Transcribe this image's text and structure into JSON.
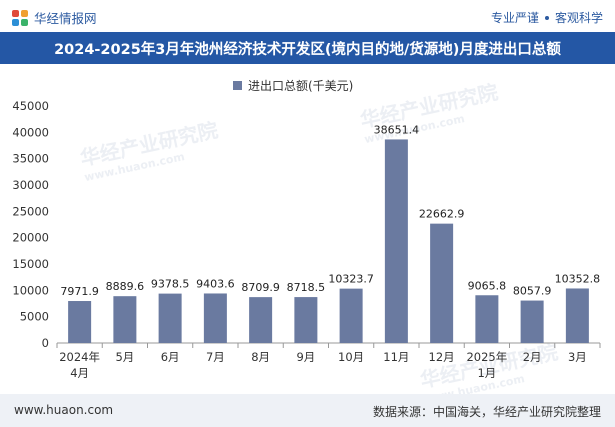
{
  "header": {
    "brand": "华经情报网",
    "tag1": "专业严谨",
    "tag2": "客观科学"
  },
  "chart_data": {
    "type": "bar",
    "title": "2024-2025年3月年池州经济技术开发区(境内目的地/货源地)月度进出口总额",
    "legend": "进出口总额(千美元)",
    "categories": [
      "2024年\n4月",
      "5月",
      "6月",
      "7月",
      "8月",
      "9月",
      "10月",
      "11月",
      "12月",
      "2025年\n1月",
      "2月",
      "3月"
    ],
    "values": [
      7971.9,
      8889.6,
      9378.5,
      9403.6,
      8709.9,
      8718.5,
      10323.7,
      38651.4,
      22662.9,
      9065.8,
      8057.9,
      10352.8
    ],
    "value_labels": [
      "7971.9",
      "8889.6",
      "9378.5",
      "9403.6",
      "8709.9",
      "8718.5",
      "10323.7",
      "38651.4",
      "22662.9",
      "9065.8",
      "8057.9",
      "10352.8"
    ],
    "yticks": [
      0,
      5000,
      10000,
      15000,
      20000,
      25000,
      30000,
      35000,
      40000,
      45000
    ],
    "ylim": [
      0,
      45000
    ],
    "bar_color": "#6a7aa0"
  },
  "watermark": {
    "cn": "华经产业研究院",
    "en": "www.huaon.com"
  },
  "footer": {
    "website": "www.huaon.com",
    "source": "数据来源：中国海关，华经产业研究院整理"
  }
}
